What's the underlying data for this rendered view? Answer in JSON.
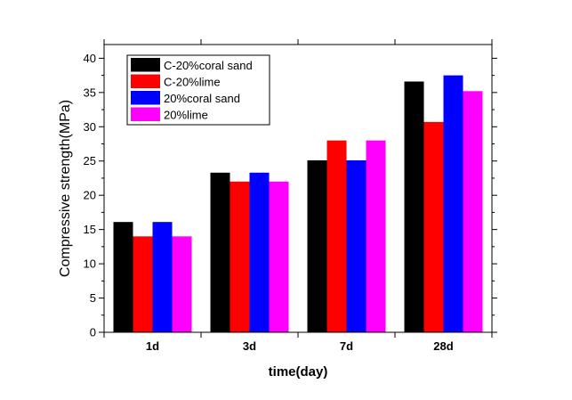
{
  "chart_data": {
    "type": "bar",
    "xlabel": "time(day)",
    "ylabel": "Compressive strength(MPa)",
    "categories": [
      "1d",
      "3d",
      "7d",
      "28d"
    ],
    "ylim": [
      0,
      42
    ],
    "yticks": [
      0,
      5,
      10,
      15,
      20,
      25,
      30,
      35,
      40
    ],
    "grid": false,
    "legend_position": "top-left",
    "series": [
      {
        "name": "C-20%coral sand",
        "color": "#000000",
        "values": [
          16.1,
          23.3,
          25.1,
          36.6
        ]
      },
      {
        "name": "C-20%lime",
        "color": "#ff0000",
        "values": [
          14.0,
          22.0,
          28.0,
          30.7
        ]
      },
      {
        "name": "20%coral sand",
        "color": "#0000ff",
        "values": [
          16.1,
          23.3,
          25.1,
          37.5
        ]
      },
      {
        "name": "20%lime",
        "color": "#ff00ff",
        "values": [
          14.0,
          22.0,
          28.0,
          35.2
        ]
      }
    ]
  }
}
